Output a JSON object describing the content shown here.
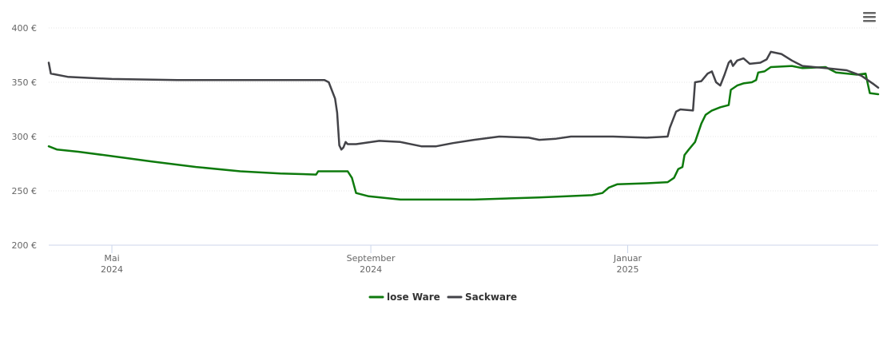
{
  "chart_data": {
    "type": "line",
    "title": "",
    "xlabel": "",
    "ylabel": "",
    "ylim": [
      200,
      400
    ],
    "y_ticks": [
      {
        "value": 200,
        "label": "200 €"
      },
      {
        "value": 250,
        "label": "250 €"
      },
      {
        "value": 300,
        "label": "300 €"
      },
      {
        "value": 350,
        "label": "350 €"
      },
      {
        "value": 400,
        "label": "400 €"
      }
    ],
    "xlim": [
      "2024-04-01",
      "2025-04-30"
    ],
    "x_ticks": [
      {
        "date": "2024-05-01",
        "month": "Mai",
        "year": "2024"
      },
      {
        "date": "2024-09-01",
        "month": "September",
        "year": "2024"
      },
      {
        "date": "2025-01-01",
        "month": "Januar",
        "year": "2025"
      }
    ],
    "grid": true,
    "legend_position": "bottom-center",
    "series": [
      {
        "name": "lose Ware",
        "color": "#0e7a0d",
        "points": [
          [
            "2024-04-01",
            291
          ],
          [
            "2024-04-05",
            288
          ],
          [
            "2024-04-15",
            286
          ],
          [
            "2024-05-01",
            282
          ],
          [
            "2024-05-20",
            277
          ],
          [
            "2024-06-10",
            272
          ],
          [
            "2024-07-01",
            268
          ],
          [
            "2024-07-20",
            266
          ],
          [
            "2024-08-06",
            265
          ],
          [
            "2024-08-07",
            268
          ],
          [
            "2024-08-21",
            268
          ],
          [
            "2024-08-23",
            262
          ],
          [
            "2024-08-25",
            248
          ],
          [
            "2024-08-31",
            245
          ],
          [
            "2024-09-15",
            242
          ],
          [
            "2024-10-20",
            242
          ],
          [
            "2024-11-20",
            244
          ],
          [
            "2024-12-15",
            246
          ],
          [
            "2024-12-20",
            248
          ],
          [
            "2024-12-23",
            253
          ],
          [
            "2024-12-27",
            256
          ],
          [
            "2025-01-10",
            257
          ],
          [
            "2025-01-20",
            258
          ],
          [
            "2025-01-23",
            262
          ],
          [
            "2025-01-25",
            270
          ],
          [
            "2025-01-27",
            272
          ],
          [
            "2025-01-28",
            283
          ],
          [
            "2025-01-30",
            288
          ],
          [
            "2025-02-02",
            295
          ],
          [
            "2025-02-05",
            312
          ],
          [
            "2025-02-07",
            320
          ],
          [
            "2025-02-10",
            324
          ],
          [
            "2025-02-14",
            327
          ],
          [
            "2025-02-18",
            329
          ],
          [
            "2025-02-19",
            343
          ],
          [
            "2025-02-22",
            347
          ],
          [
            "2025-02-25",
            349
          ],
          [
            "2025-03-01",
            350
          ],
          [
            "2025-03-03",
            352
          ],
          [
            "2025-03-04",
            359
          ],
          [
            "2025-03-07",
            360
          ],
          [
            "2025-03-10",
            364
          ],
          [
            "2025-03-20",
            365
          ],
          [
            "2025-03-25",
            363
          ],
          [
            "2025-04-05",
            364
          ],
          [
            "2025-04-10",
            359
          ],
          [
            "2025-04-20",
            357
          ],
          [
            "2025-04-24",
            358
          ],
          [
            "2025-04-26",
            340
          ],
          [
            "2025-04-30",
            339
          ]
        ]
      },
      {
        "name": "Sackware",
        "color": "#434348",
        "points": [
          [
            "2024-04-01",
            368
          ],
          [
            "2024-04-02",
            358
          ],
          [
            "2024-04-10",
            355
          ],
          [
            "2024-05-01",
            353
          ],
          [
            "2024-06-01",
            352
          ],
          [
            "2024-07-01",
            352
          ],
          [
            "2024-08-10",
            352
          ],
          [
            "2024-08-12",
            350
          ],
          [
            "2024-08-15",
            335
          ],
          [
            "2024-08-16",
            322
          ],
          [
            "2024-08-17",
            292
          ],
          [
            "2024-08-18",
            288
          ],
          [
            "2024-08-19",
            290
          ],
          [
            "2024-08-20",
            295
          ],
          [
            "2024-08-21",
            293
          ],
          [
            "2024-08-25",
            293
          ],
          [
            "2024-09-05",
            296
          ],
          [
            "2024-09-15",
            295
          ],
          [
            "2024-09-25",
            291
          ],
          [
            "2024-10-02",
            291
          ],
          [
            "2024-10-10",
            294
          ],
          [
            "2024-10-20",
            297
          ],
          [
            "2024-11-01",
            300
          ],
          [
            "2024-11-15",
            299
          ],
          [
            "2024-11-20",
            297
          ],
          [
            "2024-11-28",
            298
          ],
          [
            "2024-12-05",
            300
          ],
          [
            "2024-12-25",
            300
          ],
          [
            "2025-01-10",
            299
          ],
          [
            "2025-01-20",
            300
          ],
          [
            "2025-01-21",
            308
          ],
          [
            "2025-01-24",
            323
          ],
          [
            "2025-01-26",
            325
          ],
          [
            "2025-02-01",
            324
          ],
          [
            "2025-02-02",
            350
          ],
          [
            "2025-02-05",
            351
          ],
          [
            "2025-02-08",
            358
          ],
          [
            "2025-02-10",
            360
          ],
          [
            "2025-02-12",
            350
          ],
          [
            "2025-02-14",
            347
          ],
          [
            "2025-02-16",
            357
          ],
          [
            "2025-02-18",
            368
          ],
          [
            "2025-02-19",
            370
          ],
          [
            "2025-02-20",
            365
          ],
          [
            "2025-02-22",
            370
          ],
          [
            "2025-02-25",
            372
          ],
          [
            "2025-02-28",
            367
          ],
          [
            "2025-03-05",
            368
          ],
          [
            "2025-03-08",
            371
          ],
          [
            "2025-03-10",
            378
          ],
          [
            "2025-03-15",
            376
          ],
          [
            "2025-03-20",
            370
          ],
          [
            "2025-03-25",
            365
          ],
          [
            "2025-04-05",
            363
          ],
          [
            "2025-04-15",
            361
          ],
          [
            "2025-04-22",
            356
          ],
          [
            "2025-04-28",
            348
          ],
          [
            "2025-04-30",
            345
          ]
        ]
      }
    ]
  },
  "menu": {
    "icon": "hamburger-menu-icon"
  }
}
